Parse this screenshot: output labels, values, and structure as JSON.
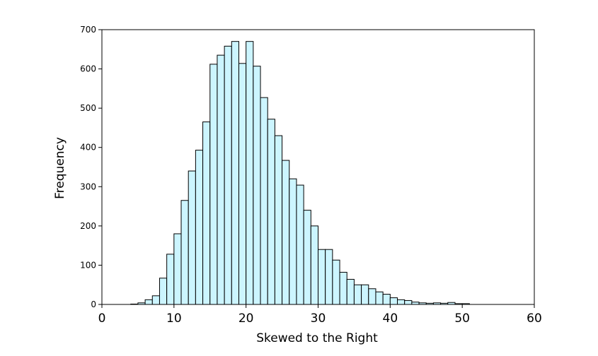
{
  "chart_data": {
    "type": "bar",
    "subtype": "histogram",
    "title": "",
    "xlabel": "Skewed to the Right",
    "ylabel": "Frequency",
    "xlim": [
      0,
      60
    ],
    "ylim": [
      0,
      700
    ],
    "x_ticks": [
      0,
      10,
      20,
      30,
      40,
      50,
      60
    ],
    "y_ticks": [
      0,
      100,
      200,
      300,
      400,
      500,
      600,
      700
    ],
    "bin_width": 1,
    "bin_starts": [
      4,
      5,
      6,
      7,
      8,
      9,
      10,
      11,
      12,
      13,
      14,
      15,
      16,
      17,
      18,
      19,
      20,
      21,
      22,
      23,
      24,
      25,
      26,
      27,
      28,
      29,
      30,
      31,
      32,
      33,
      34,
      35,
      36,
      37,
      38,
      39,
      40,
      41,
      42,
      43,
      44,
      45,
      46,
      47,
      48,
      49,
      50
    ],
    "values": [
      1,
      4,
      12,
      22,
      67,
      128,
      180,
      265,
      340,
      393,
      465,
      612,
      635,
      658,
      670,
      614,
      670,
      607,
      527,
      472,
      430,
      367,
      320,
      304,
      240,
      200,
      140,
      140,
      113,
      82,
      64,
      50,
      50,
      40,
      32,
      26,
      17,
      12,
      10,
      6,
      4,
      3,
      4,
      3,
      5,
      2,
      2
    ],
    "grid": false,
    "legend": "none",
    "bar_fill": "#ccf5ff",
    "bar_stroke": "#000000"
  }
}
